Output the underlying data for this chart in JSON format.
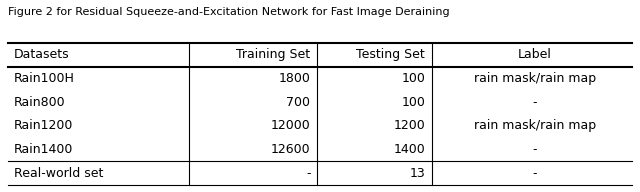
{
  "title": "Figure 2 for Residual Squeeze-and-Excitation Network for Fast Image Deraining",
  "columns": [
    "Datasets",
    "Training Set",
    "Testing Set",
    "Label"
  ],
  "col_aligns": [
    "left",
    "right",
    "right",
    "center"
  ],
  "rows": [
    [
      "Rain100H",
      "1800",
      "100",
      "rain mask/rain map"
    ],
    [
      "Rain800",
      "700",
      "100",
      "-"
    ],
    [
      "Rain1200",
      "12000",
      "1200",
      "rain mask/rain map"
    ],
    [
      "Rain1400",
      "12600",
      "1400",
      "-"
    ],
    [
      "Real-world set",
      "-",
      "13",
      "-"
    ]
  ],
  "bg_color": "#ffffff",
  "text_color": "#000000",
  "font_size": 9,
  "header_font_size": 9
}
